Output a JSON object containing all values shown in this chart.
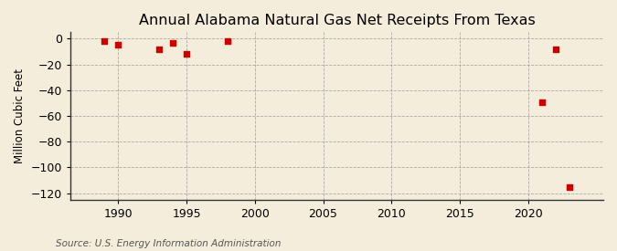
{
  "title": "Annual Alabama Natural Gas Net Receipts From Texas",
  "ylabel": "Million Cubic Feet",
  "source": "Source: U.S. Energy Information Administration",
  "background_color": "#f5eddc",
  "plot_background_color": "#f5eddc",
  "data_x": [
    1989,
    1990,
    1993,
    1994,
    1995,
    1998,
    2021,
    2022,
    2023
  ],
  "data_y": [
    -2,
    -5,
    -8,
    -3,
    -12,
    -2,
    -49,
    -8,
    -115
  ],
  "marker_color": "#cc0000",
  "marker_size": 4,
  "xlim": [
    1986.5,
    2025.5
  ],
  "ylim": [
    -125,
    5
  ],
  "xticks": [
    1990,
    1995,
    2000,
    2005,
    2010,
    2015,
    2020
  ],
  "yticks": [
    0,
    -20,
    -40,
    -60,
    -80,
    -100,
    -120
  ],
  "title_fontsize": 11.5,
  "label_fontsize": 8.5,
  "tick_fontsize": 9,
  "source_fontsize": 7.5,
  "grid_color": "#999999",
  "spine_color": "#333333"
}
